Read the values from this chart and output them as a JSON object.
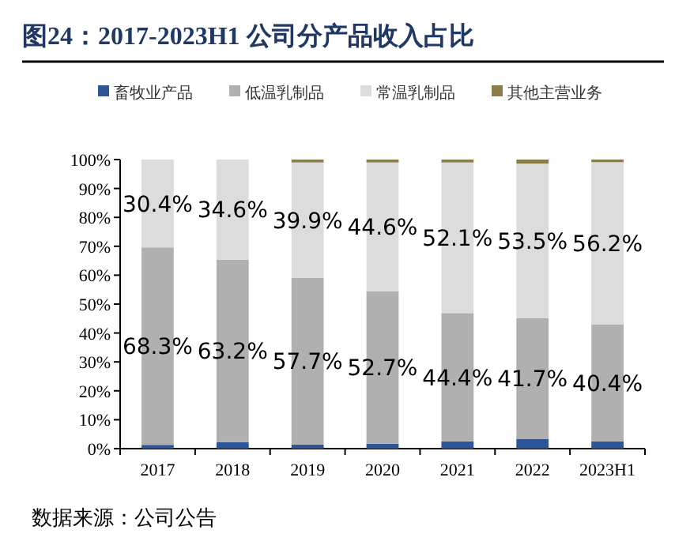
{
  "chart_data": {
    "type": "bar",
    "stacked": true,
    "title": "图24：2017-2023H1 公司分产品收入占比",
    "annotations": [
      "数据来源：公司公告"
    ],
    "categories": [
      "2017",
      "2018",
      "2019",
      "2020",
      "2021",
      "2022",
      "2023H1"
    ],
    "series": [
      {
        "name": "畜牧业产品",
        "color": "#2e5597",
        "values": [
          1.3,
          2.2,
          1.4,
          1.7,
          2.5,
          3.4,
          2.5
        ],
        "value_labels": [
          null,
          null,
          null,
          null,
          null,
          null,
          null
        ]
      },
      {
        "name": "低温乳制品",
        "color": "#b0b0b0",
        "values": [
          68.3,
          63.2,
          57.7,
          52.7,
          44.4,
          41.7,
          40.4
        ],
        "value_labels": [
          "68.3%",
          "63.2%",
          "57.7%",
          "52.7%",
          "44.4%",
          "41.7%",
          "40.4%"
        ]
      },
      {
        "name": "常温乳制品",
        "color": "#dcdcdc",
        "values": [
          30.4,
          34.6,
          39.9,
          44.6,
          52.1,
          53.5,
          56.2
        ],
        "value_labels": [
          "30.4%",
          "34.6%",
          "39.9%",
          "44.6%",
          "52.1%",
          "53.5%",
          "56.2%"
        ]
      },
      {
        "name": "其他主营业务",
        "color": "#8b7d4a",
        "values": [
          0,
          0,
          1.0,
          1.0,
          1.0,
          1.4,
          0.9
        ],
        "value_labels": [
          null,
          null,
          null,
          null,
          null,
          null,
          null
        ]
      }
    ],
    "ylim": [
      0,
      100
    ],
    "yticks": [
      {
        "value": 0,
        "label": "0%"
      },
      {
        "value": 10,
        "label": "10%"
      },
      {
        "value": 20,
        "label": "20%"
      },
      {
        "value": 30,
        "label": "30%"
      },
      {
        "value": 40,
        "label": "40%"
      },
      {
        "value": 50,
        "label": "50%"
      },
      {
        "value": 60,
        "label": "60%"
      },
      {
        "value": 70,
        "label": "70%"
      },
      {
        "value": 80,
        "label": "80%"
      },
      {
        "value": 90,
        "label": "90%"
      },
      {
        "value": 100,
        "label": "100%"
      }
    ],
    "legend": "top"
  }
}
